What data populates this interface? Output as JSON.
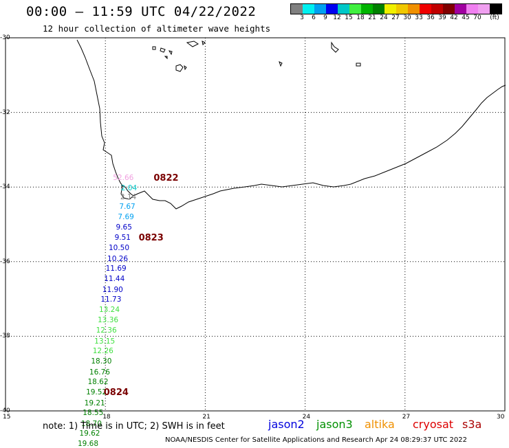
{
  "header": {
    "title": "00:00 – 11:59 UTC 04/22/2022",
    "subtitle": "12 hour collection of altimeter wave heights"
  },
  "legend": {
    "swatches": [
      "#808080",
      "#00f0f0",
      "#00a0f0",
      "#0000f0",
      "#00c8c8",
      "#40f040",
      "#00b400",
      "#008000",
      "#f0f000",
      "#f0c800",
      "#f09000",
      "#f00000",
      "#c00000",
      "#800000",
      "#a000a0",
      "#f080f0",
      "#f0a0f0",
      "#000000"
    ],
    "labels": [
      "3",
      "6",
      "9",
      "12",
      "15",
      "18",
      "21",
      "24",
      "27",
      "30",
      "33",
      "36",
      "39",
      "42",
      "45",
      "70",
      "(ft)"
    ]
  },
  "axes": {
    "y_labels": [
      "-30",
      "-32",
      "-34",
      "-36",
      "-38",
      "-40"
    ],
    "x_labels": [
      "15",
      "18",
      "21",
      "24",
      "27",
      "30"
    ]
  },
  "track": {
    "points": [
      {
        "v": "52.66",
        "c": "#f0a0e0",
        "lon": 18.85,
        "lat": -33.78
      },
      {
        "v": "2.04",
        "c": "#00c8c8",
        "lon": 18.95,
        "lat": -34.05
      },
      {
        "v": "2.14",
        "c": "#808080",
        "lon": 18.93,
        "lat": -34.29
      },
      {
        "v": "7.67",
        "c": "#00a0f0",
        "lon": 18.9,
        "lat": -34.55
      },
      {
        "v": "7.69",
        "c": "#00a0f0",
        "lon": 18.86,
        "lat": -34.83
      },
      {
        "v": "9.65",
        "c": "#0000c8",
        "lon": 18.8,
        "lat": -35.11
      },
      {
        "v": "9.51",
        "c": "#0000c8",
        "lon": 18.76,
        "lat": -35.38
      },
      {
        "v": "10.50",
        "c": "#0000c8",
        "lon": 18.72,
        "lat": -35.66
      },
      {
        "v": "10.26",
        "c": "#0000c8",
        "lon": 18.68,
        "lat": -35.94
      },
      {
        "v": "11.69",
        "c": "#0000c8",
        "lon": 18.63,
        "lat": -36.21
      },
      {
        "v": "11.44",
        "c": "#0000c8",
        "lon": 18.58,
        "lat": -36.49
      },
      {
        "v": "11.90",
        "c": "#0000c8",
        "lon": 18.53,
        "lat": -36.77
      },
      {
        "v": "11.73",
        "c": "#0000c8",
        "lon": 18.48,
        "lat": -37.04
      },
      {
        "v": "13.24",
        "c": "#40e040",
        "lon": 18.43,
        "lat": -37.32
      },
      {
        "v": "13.36",
        "c": "#40e040",
        "lon": 18.39,
        "lat": -37.59
      },
      {
        "v": "12.36",
        "c": "#40e040",
        "lon": 18.34,
        "lat": -37.87
      },
      {
        "v": "13.15",
        "c": "#40e040",
        "lon": 18.29,
        "lat": -38.15
      },
      {
        "v": "12.26",
        "c": "#40e040",
        "lon": 18.24,
        "lat": -38.42
      },
      {
        "v": "18.30",
        "c": "#008000",
        "lon": 18.19,
        "lat": -38.7
      },
      {
        "v": "16.76",
        "c": "#008000",
        "lon": 18.14,
        "lat": -38.98
      },
      {
        "v": "18.62",
        "c": "#008000",
        "lon": 18.09,
        "lat": -39.25
      },
      {
        "v": "19.52",
        "c": "#008000",
        "lon": 18.04,
        "lat": -39.53
      },
      {
        "v": "19.21",
        "c": "#008000",
        "lon": 17.99,
        "lat": -39.81
      },
      {
        "v": "18.55",
        "c": "#008000",
        "lon": 17.94,
        "lat": -40.08
      },
      {
        "v": "18.70",
        "c": "#008000",
        "lon": 17.89,
        "lat": -40.36
      },
      {
        "v": "19.62",
        "c": "#008000",
        "lon": 17.84,
        "lat": -40.63
      },
      {
        "v": "19.68",
        "c": "#008000",
        "lon": 17.79,
        "lat": -40.91
      }
    ],
    "times": [
      {
        "t": "0822",
        "lon": 19.45,
        "lat": -33.78
      },
      {
        "t": "0823",
        "lon": 19.0,
        "lat": -35.38
      },
      {
        "t": "0824",
        "lon": 17.95,
        "lat": -39.53
      }
    ]
  },
  "note": "note: 1) Time is in UTC; 2) SWH is in feet",
  "satellites": [
    {
      "name": "jason2",
      "color": "#0000dd"
    },
    {
      "name": "jason3",
      "color": "#009000"
    },
    {
      "name": "altika",
      "color": "#f09000"
    },
    {
      "name": "cryosat",
      "color": "#dd0000"
    },
    {
      "name": "s3a",
      "color": "#aa0000"
    }
  ],
  "footer": "NOAA/NESDIS Center for Satellite Applications and Research   Apr 24 08:29:37 UTC 2022"
}
